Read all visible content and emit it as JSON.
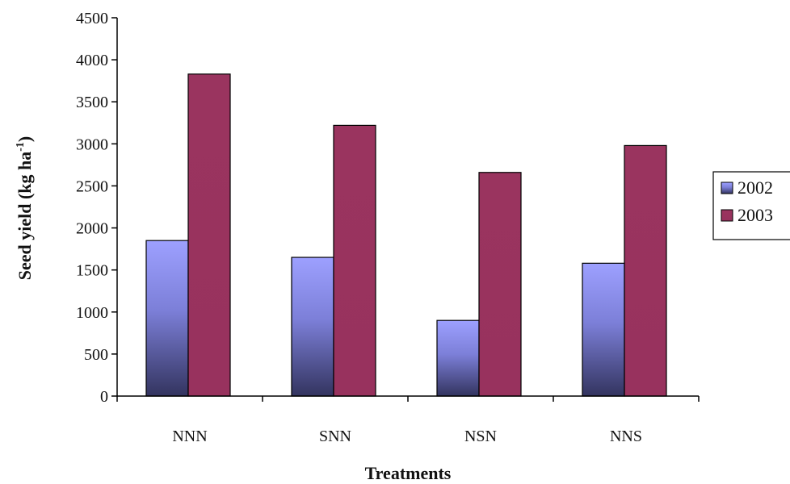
{
  "chart_data": {
    "type": "bar",
    "categories": [
      "NNN",
      "SNN",
      "NSN",
      "NNS"
    ],
    "series": [
      {
        "name": "2002",
        "values": [
          1850,
          1650,
          900,
          1580
        ],
        "color": "#8f92f2"
      },
      {
        "name": "2003",
        "values": [
          3830,
          3220,
          2660,
          2980
        ],
        "color": "#99335f"
      }
    ],
    "ylim": [
      0,
      4500
    ],
    "yticks": [
      0,
      500,
      1000,
      1500,
      2000,
      2500,
      3000,
      3500,
      4000,
      4500
    ],
    "xlabel": "Treatments",
    "ylabel": "Seed yield (kg ha",
    "ylabel_superscript": "-1",
    "ylabel_suffix": ")",
    "legend_position": "right",
    "grid": false
  }
}
